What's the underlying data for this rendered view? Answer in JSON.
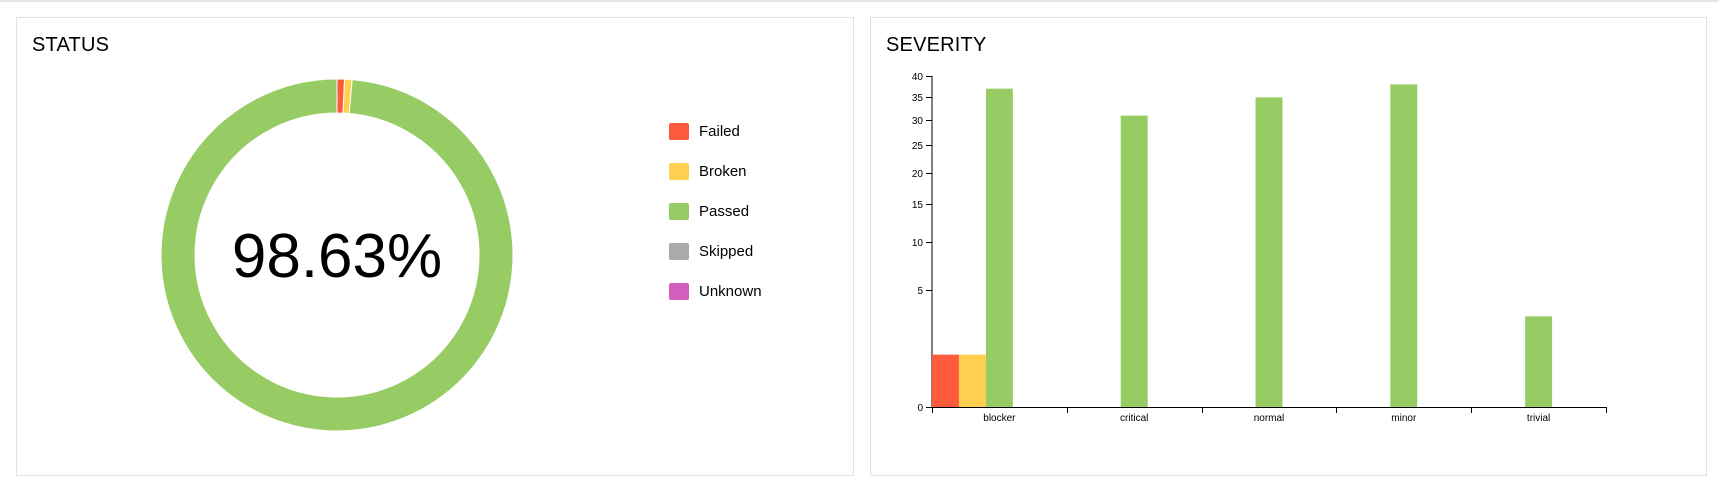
{
  "status": {
    "title": "STATUS",
    "percent_label": "98.63%",
    "legend": [
      {
        "label": "Failed",
        "color": "#fd5a3e"
      },
      {
        "label": "Broken",
        "color": "#ffd050"
      },
      {
        "label": "Passed",
        "color": "#97cc64"
      },
      {
        "label": "Skipped",
        "color": "#aaaaaa"
      },
      {
        "label": "Unknown",
        "color": "#d35ebe"
      }
    ]
  },
  "severity": {
    "title": "SEVERITY"
  },
  "chart_data": [
    {
      "type": "pie",
      "title": "STATUS",
      "center_label": "98.63%",
      "categories": [
        "Failed",
        "Broken",
        "Passed",
        "Skipped",
        "Unknown"
      ],
      "values": [
        1,
        1,
        144,
        0,
        0
      ],
      "colors": [
        "#fd5a3e",
        "#ffd050",
        "#97cc64",
        "#aaaaaa",
        "#d35ebe"
      ],
      "legend_position": "right"
    },
    {
      "type": "bar",
      "title": "SEVERITY",
      "categories": [
        "blocker",
        "critical",
        "normal",
        "minor",
        "trivial"
      ],
      "series": [
        {
          "name": "Failed",
          "color": "#fd5a3e",
          "values": [
            1,
            0,
            0,
            0,
            0
          ]
        },
        {
          "name": "Broken",
          "color": "#ffd050",
          "values": [
            1,
            0,
            0,
            0,
            0
          ]
        },
        {
          "name": "Passed",
          "color": "#97cc64",
          "values": [
            37,
            31,
            35,
            38,
            3
          ]
        },
        {
          "name": "Skipped",
          "color": "#aaaaaa",
          "values": [
            0,
            0,
            0,
            0,
            0
          ]
        },
        {
          "name": "Unknown",
          "color": "#d35ebe",
          "values": [
            0,
            0,
            0,
            0,
            0
          ]
        }
      ],
      "y_scale": "sqrt",
      "y_ticks": [
        0,
        5,
        10,
        15,
        20,
        25,
        30,
        35,
        40
      ],
      "ylim": [
        0,
        40
      ],
      "grid": false
    }
  ]
}
